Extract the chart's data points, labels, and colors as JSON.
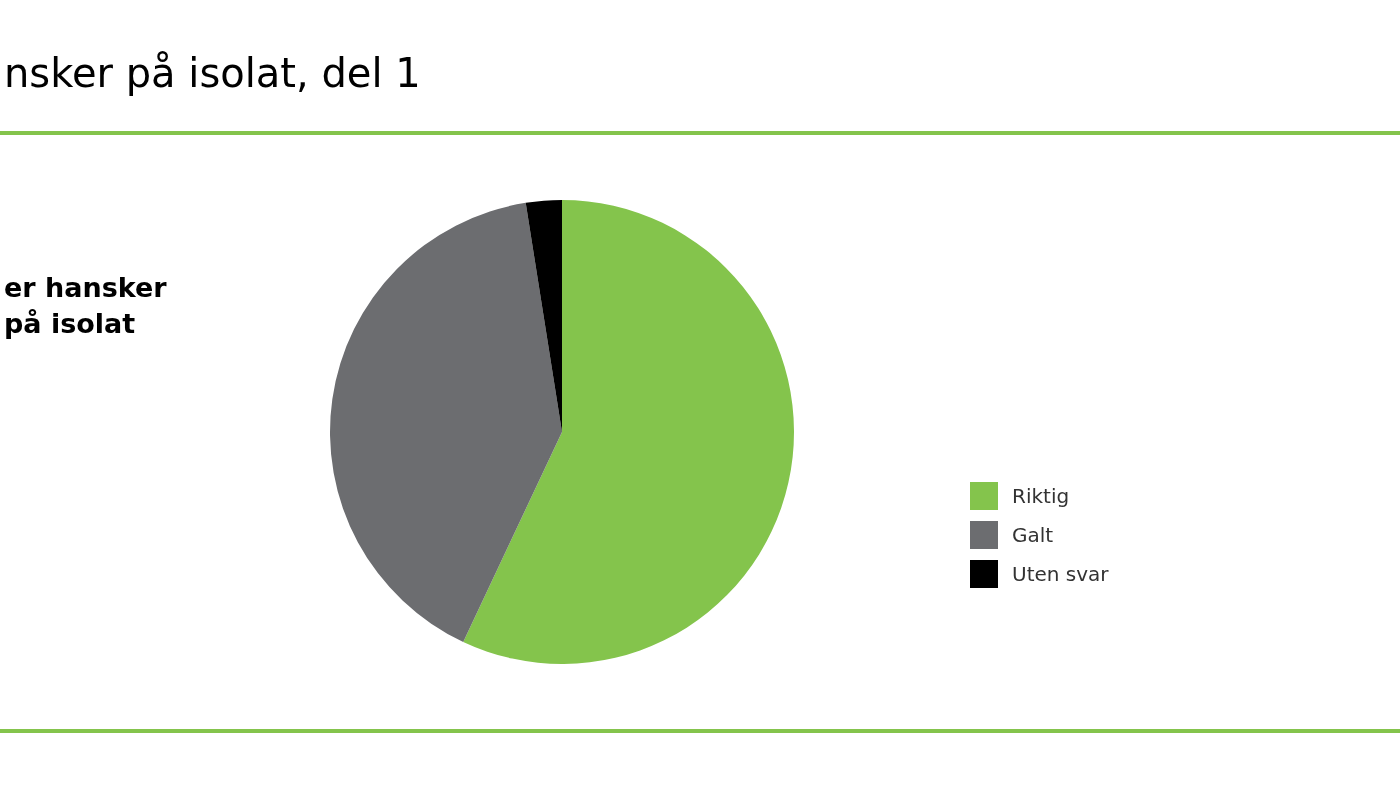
{
  "chart_data": {
    "type": "pie",
    "title": "nsker på isolat, del 1",
    "subtitle": "er hansker\npå isolat",
    "categories": [
      "Riktig",
      "Galt",
      "Uten svar"
    ],
    "values": [
      57,
      40.5,
      2.5
    ],
    "colors": [
      "#84c44c",
      "#6c6d70",
      "#000000"
    ],
    "legend": "right"
  }
}
